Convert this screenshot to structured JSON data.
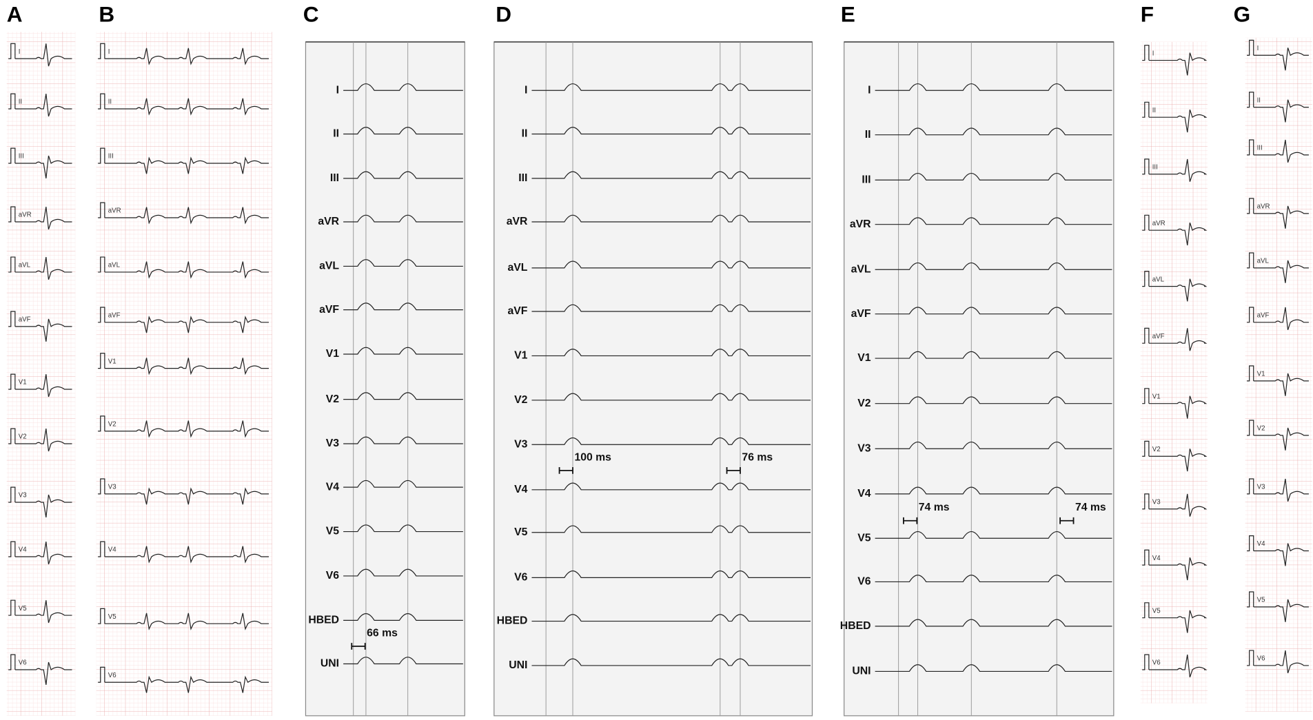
{
  "panels": [
    {
      "label": "A",
      "leads": [
        "I",
        "II",
        "III",
        "aVR",
        "aVL",
        "aVF",
        "V1",
        "V2",
        "V3",
        "V4",
        "V5",
        "V6"
      ]
    },
    {
      "label": "B",
      "leads": [
        "I",
        "II",
        "III",
        "aVR",
        "aVL",
        "aVF",
        "V1",
        "V2",
        "V3",
        "V4",
        "V5",
        "V6"
      ]
    },
    {
      "label": "C",
      "leads": [
        "I",
        "II",
        "III",
        "aVR",
        "aVL",
        "aVF",
        "V1",
        "V2",
        "V3",
        "V4",
        "V5",
        "V6",
        "HBED",
        "UNI"
      ],
      "annotations": [
        "66 ms"
      ]
    },
    {
      "label": "D",
      "leads": [
        "I",
        "II",
        "III",
        "aVR",
        "aVL",
        "aVF",
        "V1",
        "V2",
        "V3",
        "V4",
        "V5",
        "V6",
        "HBED",
        "UNI"
      ],
      "annotations": [
        "100 ms",
        "76 ms"
      ]
    },
    {
      "label": "E",
      "leads": [
        "I",
        "II",
        "III",
        "aVR",
        "aVL",
        "aVF",
        "V1",
        "V2",
        "V3",
        "V4",
        "V5",
        "V6",
        "HBED",
        "UNI"
      ],
      "annotations": [
        "74 ms",
        "74 ms"
      ]
    },
    {
      "label": "F",
      "leads": [
        "I",
        "II",
        "III",
        "aVR",
        "aVL",
        "aVF",
        "V1",
        "V2",
        "V3",
        "V4",
        "V5",
        "V6"
      ]
    },
    {
      "label": "G",
      "leads": [
        "I",
        "II",
        "III",
        "aVR",
        "aVL",
        "aVF",
        "V1",
        "V2",
        "V3",
        "V4",
        "V5",
        "V6"
      ]
    }
  ]
}
